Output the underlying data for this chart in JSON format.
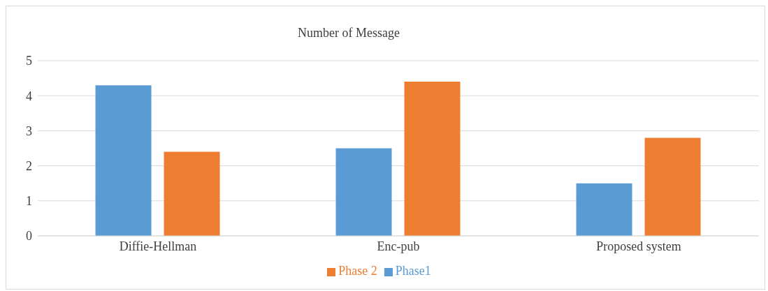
{
  "chart_data": {
    "type": "bar",
    "title": "Number of Message",
    "categories": [
      "Diffie-Hellman",
      "Enc-pub",
      "Proposed system"
    ],
    "series": [
      {
        "name": "Phase1",
        "color": "#5b9bd5",
        "values": [
          4.3,
          2.5,
          1.5
        ]
      },
      {
        "name": "Phase 2",
        "color": "#ed7d31",
        "values": [
          2.4,
          4.4,
          2.8
        ]
      }
    ],
    "ylim": [
      0,
      5
    ],
    "yticks": [
      0,
      1,
      2,
      3,
      4,
      5
    ],
    "grid": "y",
    "legend": "bottom"
  }
}
